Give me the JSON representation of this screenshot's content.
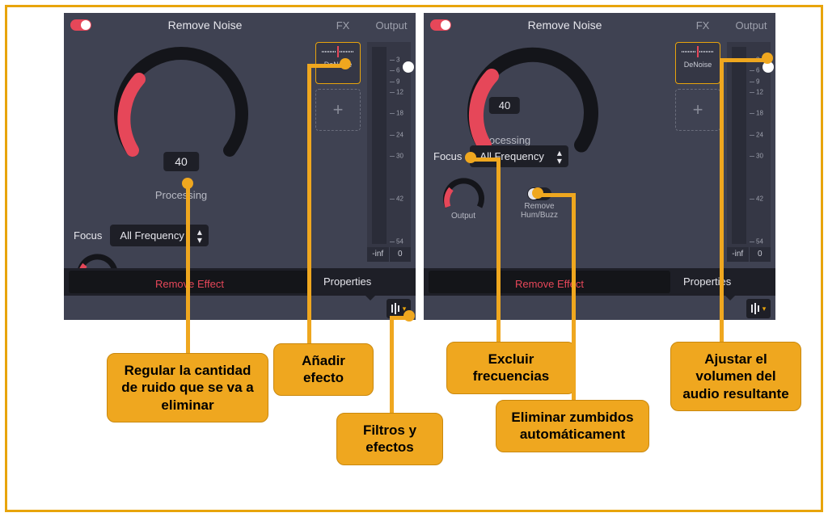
{
  "panel": {
    "title": "Remove Noise",
    "fx_header": "FX",
    "output_header": "Output",
    "dial": {
      "value": "40",
      "label": "Processing",
      "fill_pct": 40
    },
    "focus_label": "Focus",
    "focus_value": "All Frequency",
    "fx_slot_label": "DeNoise",
    "output_readout_l": "-inf",
    "output_readout_r": "0",
    "remove_effect": "Remove Effect",
    "properties": "Properties",
    "output_sub_label": "Output",
    "hum_label1": "Remove",
    "hum_label2": "Hum/Buzz",
    "output_ticks": [
      3,
      6,
      9,
      12,
      18,
      24,
      30,
      42,
      54
    ],
    "colors": {
      "accent_red": "#e64759",
      "accent_gold": "#e8a40c",
      "panel_bg": "#3f4252",
      "dark_bg": "#1e1f27",
      "callout_bg": "#efa71f"
    }
  },
  "callouts": {
    "c1": "Regular la cantidad de ruido que se va a eliminar",
    "c2": "Añadir efecto",
    "c3": "Filtros y efectos",
    "c4": "Excluir frecuencias",
    "c5": "Eliminar zumbidos automáticament",
    "c6": "Ajustar el volumen del audio resultante"
  }
}
